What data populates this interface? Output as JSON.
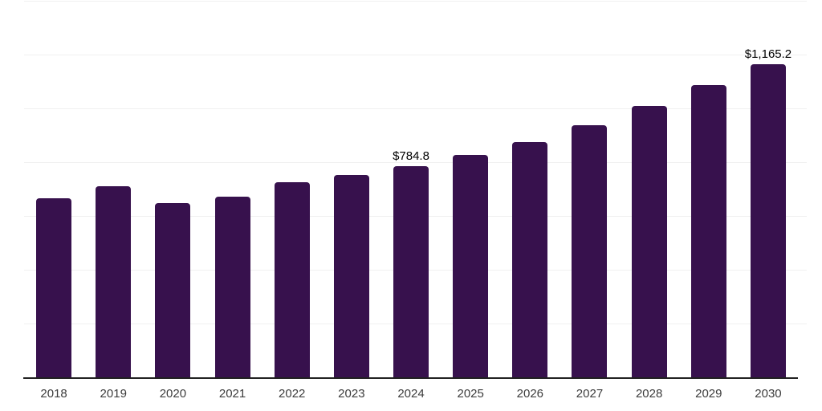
{
  "chart_data": {
    "type": "bar",
    "title": "",
    "xlabel": "",
    "ylabel": "",
    "categories": [
      "2018",
      "2019",
      "2020",
      "2021",
      "2022",
      "2023",
      "2024",
      "2025",
      "2026",
      "2027",
      "2028",
      "2029",
      "2030"
    ],
    "values": [
      667,
      710,
      647,
      672,
      726,
      751,
      784.8,
      826,
      875,
      938,
      1008,
      1086,
      1165.2
    ],
    "data_labels": {
      "2024": "$784.8",
      "2030": "$1,165.2"
    },
    "ylim": [
      0,
      1400
    ],
    "gridline_step": 200,
    "grid": "horizontal-only",
    "legend": "none",
    "bar_color": "#37114D",
    "gridline_color": "#f0f0f0",
    "axis_line_color": "#212121",
    "tick_label_color": "#3c3c3c",
    "data_label_color": "#000000"
  }
}
